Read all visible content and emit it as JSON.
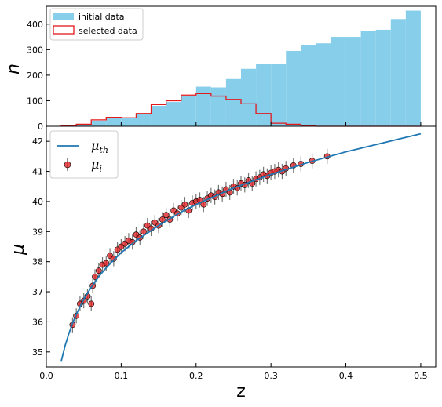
{
  "chart_data": [
    {
      "type": "bar",
      "subtype": "histogram",
      "ylabel": "n",
      "xlim": [
        0.0,
        0.52
      ],
      "ylim": [
        0,
        470
      ],
      "yticks": [
        0,
        100,
        200,
        300,
        400
      ],
      "legend_location": "upper-left",
      "bin_edges": [
        0.02,
        0.04,
        0.06,
        0.08,
        0.1,
        0.12,
        0.14,
        0.16,
        0.18,
        0.2,
        0.22,
        0.24,
        0.26,
        0.28,
        0.3,
        0.32,
        0.34,
        0.36,
        0.38,
        0.4,
        0.42,
        0.44,
        0.46,
        0.48,
        0.5
      ],
      "series": [
        {
          "name": "initial data",
          "style": "filled",
          "color": "#87CEEB",
          "values": [
            2,
            8,
            22,
            35,
            33,
            48,
            80,
            95,
            120,
            155,
            152,
            185,
            225,
            245,
            245,
            295,
            318,
            325,
            350,
            350,
            372,
            378,
            420,
            453
          ]
        },
        {
          "name": "selected data",
          "style": "step",
          "color": "#e31a1c",
          "values": [
            2,
            8,
            25,
            35,
            33,
            50,
            85,
            100,
            122,
            128,
            118,
            105,
            88,
            50,
            12,
            8,
            2,
            0,
            0,
            0,
            0,
            0,
            0,
            0
          ]
        }
      ]
    },
    {
      "type": "scatter",
      "xlabel": "z",
      "ylabel": "μ",
      "xlim": [
        0.0,
        0.52
      ],
      "ylim": [
        34.5,
        42.5
      ],
      "xticks": [
        0.0,
        0.1,
        0.2,
        0.3,
        0.4,
        0.5
      ],
      "xtick_labels": [
        "0.0",
        "0.1",
        "0.2",
        "0.3",
        "0.4",
        "0.5"
      ],
      "yticks": [
        35,
        36,
        37,
        38,
        39,
        40,
        41,
        42
      ],
      "legend_location": "upper-left",
      "model_curve": {
        "name": "μth",
        "color": "#1f77b4",
        "x": [
          0.02,
          0.025,
          0.03,
          0.035,
          0.04,
          0.05,
          0.06,
          0.07,
          0.08,
          0.1,
          0.12,
          0.15,
          0.18,
          0.2,
          0.25,
          0.3,
          0.35,
          0.4,
          0.45,
          0.5
        ],
        "y": [
          34.7,
          35.2,
          35.6,
          35.95,
          36.25,
          36.75,
          37.15,
          37.5,
          37.8,
          38.3,
          38.7,
          39.2,
          39.65,
          39.9,
          40.45,
          40.9,
          41.3,
          41.65,
          41.95,
          42.25
        ]
      },
      "data_points": {
        "name": "μi",
        "marker_color": "#e31a1c",
        "error_bar_color": "#555555",
        "x": [
          0.035,
          0.04,
          0.045,
          0.05,
          0.055,
          0.06,
          0.062,
          0.065,
          0.07,
          0.075,
          0.08,
          0.085,
          0.09,
          0.095,
          0.1,
          0.105,
          0.11,
          0.115,
          0.12,
          0.125,
          0.13,
          0.135,
          0.14,
          0.145,
          0.15,
          0.155,
          0.16,
          0.165,
          0.17,
          0.175,
          0.18,
          0.185,
          0.19,
          0.195,
          0.2,
          0.205,
          0.21,
          0.215,
          0.22,
          0.225,
          0.23,
          0.235,
          0.24,
          0.245,
          0.25,
          0.255,
          0.26,
          0.265,
          0.27,
          0.275,
          0.28,
          0.285,
          0.29,
          0.295,
          0.3,
          0.305,
          0.31,
          0.315,
          0.32,
          0.33,
          0.34,
          0.355,
          0.375
        ],
        "y": [
          35.9,
          36.2,
          36.6,
          36.7,
          36.85,
          36.6,
          37.2,
          37.5,
          37.7,
          37.9,
          37.95,
          38.2,
          38.1,
          38.4,
          38.5,
          38.6,
          38.7,
          38.65,
          38.9,
          38.8,
          39.0,
          39.2,
          39.1,
          39.3,
          39.2,
          39.4,
          39.55,
          39.4,
          39.7,
          39.6,
          39.8,
          39.9,
          39.7,
          39.95,
          40.0,
          40.05,
          39.9,
          40.1,
          40.2,
          40.15,
          40.3,
          40.25,
          40.4,
          40.3,
          40.5,
          40.45,
          40.6,
          40.55,
          40.7,
          40.6,
          40.75,
          40.8,
          40.9,
          40.85,
          40.95,
          41.0,
          41.05,
          41.0,
          41.1,
          41.2,
          41.25,
          41.35,
          41.5
        ],
        "yerr": 0.25
      }
    }
  ]
}
